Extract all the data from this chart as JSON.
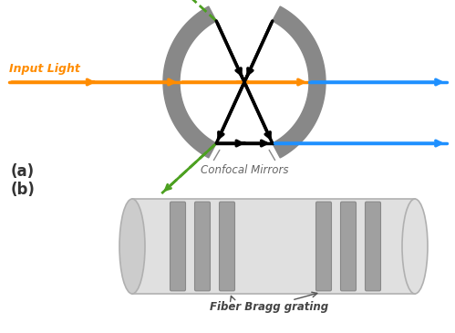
{
  "fig_width": 4.99,
  "fig_height": 3.65,
  "dpi": 100,
  "bg_color": "#ffffff",
  "panel_a": {
    "label": "(a)",
    "mirror_color": "#888888",
    "orange_color": "#FF8C00",
    "blue_color": "#1E90FF",
    "green_color": "#4CA020",
    "black_color": "#000000",
    "confocal_label": "Confocal Mirrors",
    "input_light_label": "Input Light"
  },
  "panel_b": {
    "label": "(b)",
    "fiber_body_color": "#e0e0e0",
    "fiber_left_cap_color": "#d0d0d0",
    "fiber_edge_color": "#b0b0b0",
    "grating_color": "#a0a0a0",
    "grating_edge_color": "#888888",
    "fiber_label": "Fiber Bragg grating"
  }
}
